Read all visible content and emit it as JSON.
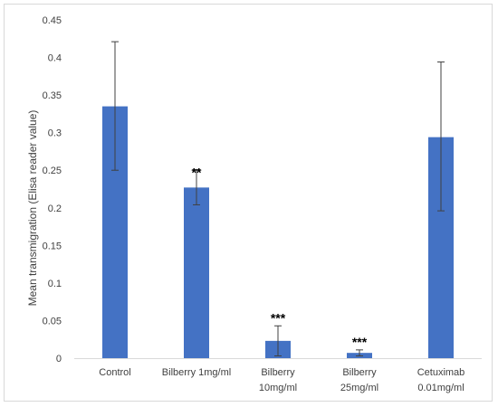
{
  "chart_data": {
    "type": "bar",
    "categories": [
      [
        "Control"
      ],
      [
        "Bilberry 1mg/ml"
      ],
      [
        "Bilberry",
        "10mg/ml"
      ],
      [
        "Bilberry",
        "25mg/ml"
      ],
      [
        "Cetuximab",
        "0.01mg/ml"
      ]
    ],
    "values": [
      0.335,
      0.227,
      0.023,
      0.007,
      0.294
    ],
    "error_low": [
      0.25,
      0.204,
      0.003,
      0.003,
      0.196
    ],
    "error_high": [
      0.421,
      0.251,
      0.043,
      0.011,
      0.394
    ],
    "significance": [
      "",
      "**",
      "***",
      "***",
      ""
    ],
    "ylabel": "Mean transmigration (Elisa reader value)",
    "xlabel": "",
    "ylim": [
      0,
      0.45
    ],
    "yticks": [
      "0",
      "0.05",
      "0.1",
      "0.15",
      "0.2",
      "0.25",
      "0.3",
      "0.35",
      "0.4",
      "0.45"
    ],
    "grid": false,
    "legend": "none",
    "bar_color": "#4472c4"
  }
}
